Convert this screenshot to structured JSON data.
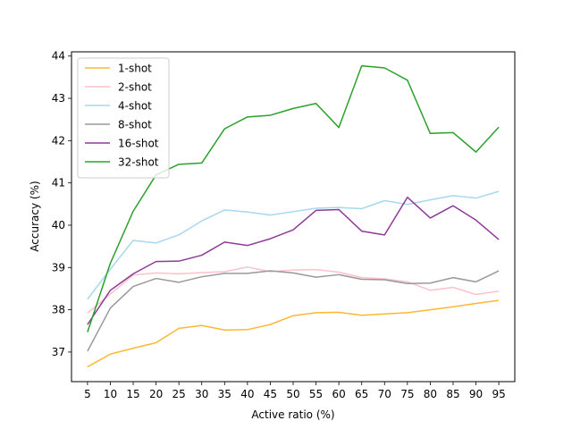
{
  "chart_data": {
    "type": "line",
    "xlabel": "Active ratio (%)",
    "ylabel": "Accuracy (%)",
    "x": [
      5,
      10,
      15,
      20,
      25,
      30,
      35,
      40,
      45,
      50,
      55,
      60,
      65,
      70,
      75,
      80,
      85,
      90,
      95
    ],
    "xticks": [
      5,
      10,
      15,
      20,
      25,
      30,
      35,
      40,
      45,
      50,
      55,
      60,
      65,
      70,
      75,
      80,
      85,
      90,
      95
    ],
    "yticks": [
      37,
      38,
      39,
      40,
      41,
      42,
      43,
      44
    ],
    "xlim": [
      1.5,
      98.5
    ],
    "ylim": [
      36.3,
      44.1
    ],
    "grid": false,
    "legend_position": "top-left",
    "series": [
      {
        "name": "1-shot",
        "color": "#ffb733",
        "values": [
          36.65,
          36.95,
          37.09,
          37.22,
          37.56,
          37.63,
          37.52,
          37.53,
          37.65,
          37.86,
          37.93,
          37.94,
          37.87,
          37.9,
          37.93,
          38.0,
          38.07,
          38.15,
          38.22
        ]
      },
      {
        "name": "2-shot",
        "color": "#ffc0cb",
        "values": [
          37.92,
          38.37,
          38.82,
          38.87,
          38.85,
          38.88,
          38.9,
          39.01,
          38.9,
          38.94,
          38.95,
          38.89,
          38.76,
          38.73,
          38.66,
          38.46,
          38.53,
          38.36,
          38.44
        ]
      },
      {
        "name": "4-shot",
        "color": "#a6d8ef",
        "values": [
          38.25,
          38.96,
          39.64,
          39.58,
          39.77,
          40.1,
          40.36,
          40.31,
          40.24,
          40.32,
          40.4,
          40.42,
          40.39,
          40.58,
          40.49,
          40.6,
          40.7,
          40.64,
          40.8
        ]
      },
      {
        "name": "8-shot",
        "color": "#999999",
        "values": [
          37.02,
          38.04,
          38.55,
          38.74,
          38.65,
          38.78,
          38.86,
          38.86,
          38.92,
          38.87,
          38.77,
          38.83,
          38.72,
          38.71,
          38.62,
          38.63,
          38.76,
          38.66,
          38.92
        ]
      },
      {
        "name": "16-shot",
        "color": "#8e3a96",
        "values": [
          37.65,
          38.46,
          38.85,
          39.14,
          39.15,
          39.29,
          39.6,
          39.52,
          39.68,
          39.89,
          40.35,
          40.37,
          39.86,
          39.77,
          40.66,
          40.17,
          40.46,
          40.12,
          39.66
        ]
      },
      {
        "name": "32-shot",
        "color": "#2ca02c",
        "values": [
          37.47,
          39.1,
          40.33,
          41.19,
          41.44,
          41.47,
          42.28,
          42.56,
          42.6,
          42.76,
          42.88,
          42.31,
          43.77,
          43.72,
          43.43,
          42.17,
          42.19,
          41.73,
          42.32
        ]
      }
    ]
  }
}
